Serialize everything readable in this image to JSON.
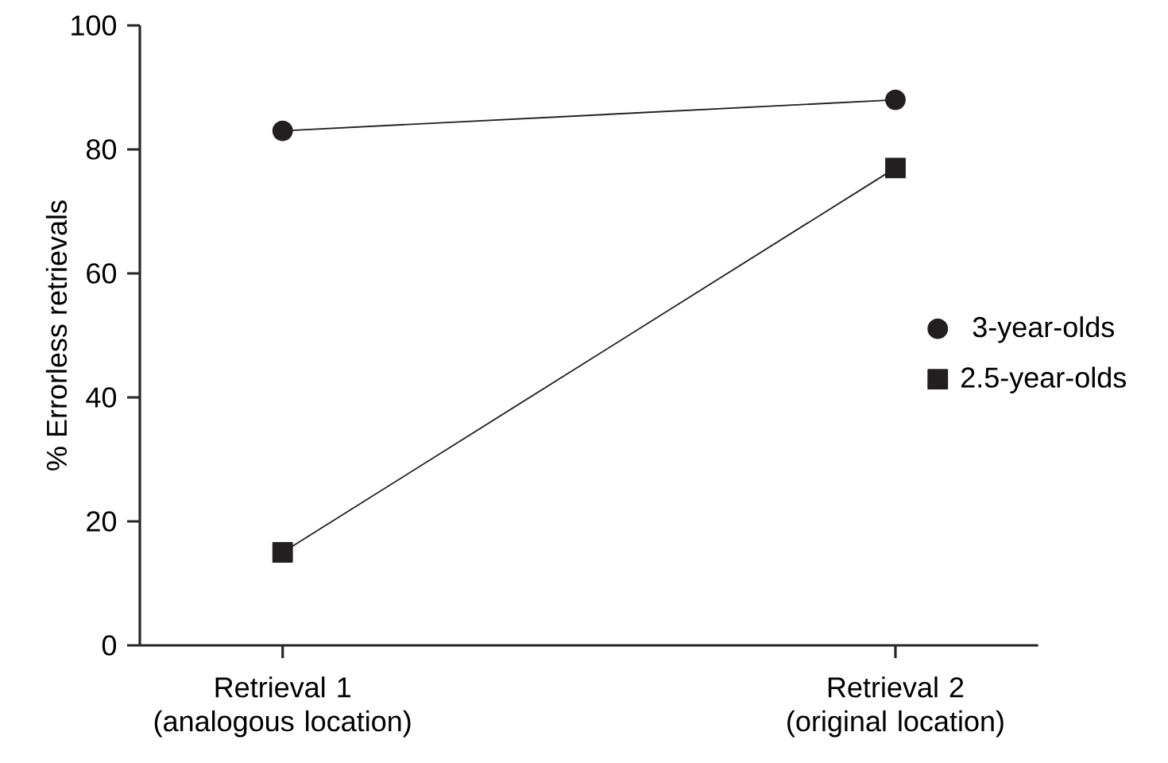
{
  "chart_data": {
    "type": "line",
    "ylabel": "% Errorless retrievals",
    "categories": [
      "Retrieval 1 (analogous location)",
      "Retrieval 2 (original location)"
    ],
    "series": [
      {
        "name": "3-year-olds",
        "color": "#231f20",
        "marker": "circle",
        "values": [
          83,
          88
        ]
      },
      {
        "name": "2.5-year-olds",
        "color": "#231f20",
        "marker": "square",
        "values": [
          15,
          77
        ]
      }
    ],
    "ylim": [
      0,
      100
    ],
    "yticks": [
      0,
      20,
      40,
      60,
      80,
      100
    ],
    "grid": false,
    "legend": "right",
    "line_style": "solid"
  }
}
